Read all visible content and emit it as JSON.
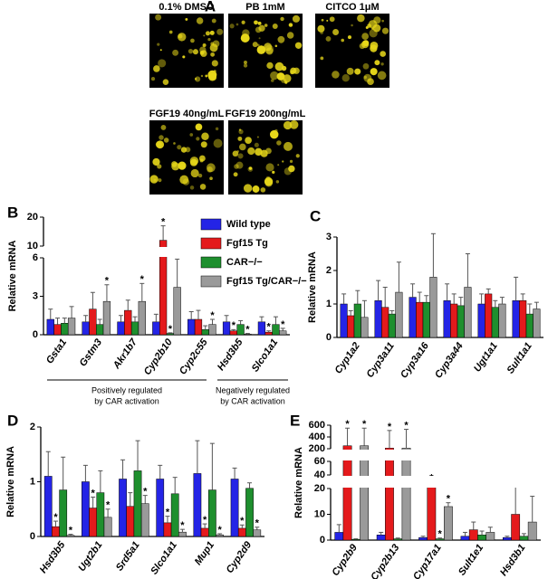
{
  "panel_a": {
    "letter": "A",
    "images": [
      "0.1% DMSO",
      "PB 1mM",
      "CITCO 1μM",
      "FGF19 40ng/mL",
      "FGF19 200ng/mL"
    ]
  },
  "chart_data": [
    {
      "type": "bar",
      "panel": "B",
      "ylabel": "Relative mRNA",
      "categories": [
        "Gsta1",
        "Gstm3",
        "Akr1b7",
        "Cyp2b10",
        "Cyp2c55",
        "Hsd3b5",
        "Slco1a1"
      ],
      "ylim": [
        0,
        20
      ],
      "ysegments": [
        [
          0,
          6
        ],
        [
          10,
          20
        ]
      ],
      "yticks": [
        0,
        3,
        6,
        10,
        20
      ],
      "legend": "upper right",
      "groups": [
        [
          "Positively regulated",
          "by CAR activation"
        ],
        [
          "Negatively regulated",
          "by CAR activation"
        ]
      ],
      "series": [
        {
          "name": "Wild type",
          "color": "#2424e6",
          "values": [
            1.2,
            1.0,
            1.0,
            1.0,
            1.2,
            1.0,
            1.0
          ],
          "errors": [
            0.8,
            0.5,
            0.5,
            0.6,
            0.6,
            0.5,
            0.4
          ],
          "annotations": [
            null,
            null,
            null,
            null,
            null,
            null,
            null
          ]
        },
        {
          "name": "Fgf15 Tg",
          "color": "#e41a1c",
          "values": [
            0.8,
            2.0,
            1.9,
            12,
            1.2,
            0.3,
            0.2
          ],
          "errors": [
            0.5,
            1.3,
            0.8,
            5,
            0.7,
            0.1,
            0.1
          ],
          "annotations": [
            null,
            null,
            null,
            "*",
            null,
            "*",
            "*"
          ]
        },
        {
          "name": "CAR−/−",
          "color": "#1e8f2e",
          "values": [
            0.9,
            0.8,
            1.0,
            0.1,
            0.4,
            0.8,
            0.8
          ],
          "errors": [
            0.4,
            0.4,
            0.4,
            0.05,
            0.3,
            0.3,
            0.6
          ],
          "annotations": [
            null,
            null,
            null,
            "*",
            null,
            null,
            null
          ]
        },
        {
          "name": "Fgf15 Tg/CAR−/−",
          "color": "#9a9a9a",
          "values": [
            1.3,
            2.6,
            2.6,
            3.7,
            0.8,
            0.05,
            0.3
          ],
          "errors": [
            0.9,
            1.3,
            1.4,
            2.2,
            0.4,
            0.05,
            0.2
          ],
          "annotations": [
            null,
            "*",
            "*",
            "*",
            "*",
            "*",
            "*"
          ]
        }
      ]
    },
    {
      "type": "bar",
      "panel": "C",
      "ylabel": "Relative mRNA",
      "categories": [
        "Cyp1a2",
        "Cyp3a11",
        "Cyp3a16",
        "Cyp3a44",
        "Ugt1a1",
        "Sult1a1"
      ],
      "ylim": [
        0,
        3
      ],
      "ysegments": [
        [
          0,
          3
        ]
      ],
      "yticks": [
        0,
        1,
        2,
        3
      ],
      "series": [
        {
          "color": "#2424e6",
          "values": [
            1.0,
            1.1,
            1.2,
            1.1,
            1.0,
            1.1
          ],
          "errors": [
            0.3,
            0.6,
            0.4,
            0.5,
            0.3,
            0.7
          ]
        },
        {
          "color": "#e41a1c",
          "values": [
            0.65,
            0.9,
            1.05,
            1.0,
            1.3,
            1.1
          ],
          "errors": [
            0.15,
            0.6,
            0.3,
            0.3,
            0.15,
            0.2
          ]
        },
        {
          "color": "#1e8f2e",
          "values": [
            1.0,
            0.7,
            1.05,
            0.95,
            0.9,
            0.7
          ],
          "errors": [
            0.4,
            0.1,
            0.2,
            0.25,
            0.2,
            0.3
          ]
        },
        {
          "color": "#9a9a9a",
          "values": [
            0.6,
            1.35,
            1.8,
            1.5,
            1.0,
            0.85
          ],
          "errors": [
            0.5,
            0.9,
            1.3,
            1.0,
            0.2,
            0.2
          ]
        }
      ]
    },
    {
      "type": "bar",
      "panel": "D",
      "ylabel": "Relative mRNA",
      "categories": [
        "Hsd3b5",
        "Ugt2b1",
        "Srd5a1",
        "Slco1a1",
        "Mup1",
        "Cyp2d9"
      ],
      "ylim": [
        0,
        2
      ],
      "ysegments": [
        [
          0,
          2
        ]
      ],
      "yticks": [
        0,
        1,
        2
      ],
      "series": [
        {
          "color": "#2424e6",
          "values": [
            1.1,
            1.0,
            1.05,
            1.05,
            1.15,
            1.05
          ],
          "errors": [
            0.45,
            0.3,
            0.35,
            0.25,
            0.6,
            0.2
          ],
          "annotations": [
            null,
            null,
            null,
            null,
            null,
            null
          ]
        },
        {
          "color": "#e41a1c",
          "values": [
            0.18,
            0.52,
            0.55,
            0.25,
            0.15,
            0.15
          ],
          "errors": [
            0.1,
            0.2,
            0.25,
            0.12,
            0.08,
            0.06
          ],
          "annotations": [
            "*",
            "*",
            null,
            "*",
            "*",
            "*"
          ]
        },
        {
          "color": "#1e8f2e",
          "values": [
            0.85,
            0.8,
            1.2,
            0.78,
            0.85,
            0.88
          ],
          "errors": [
            0.6,
            0.4,
            0.55,
            0.3,
            0.85,
            0.1
          ],
          "annotations": [
            null,
            null,
            null,
            null,
            null,
            null
          ]
        },
        {
          "color": "#9a9a9a",
          "values": [
            0.02,
            0.35,
            0.6,
            0.08,
            0.03,
            0.12
          ],
          "errors": [
            0.02,
            0.15,
            0.15,
            0.05,
            0.02,
            0.05
          ],
          "annotations": [
            "*",
            "*",
            "*",
            "*",
            "*",
            "*"
          ]
        }
      ]
    },
    {
      "type": "bar",
      "panel": "E",
      "ylabel": "Relative mRNA",
      "categories": [
        "Cyp2b9",
        "Cyp2b13",
        "Cyp17a1",
        "Sult1e1",
        "Hsd3b1"
      ],
      "ylim": [
        0,
        600
      ],
      "ysegments": [
        [
          0,
          20
        ],
        [
          40,
          60
        ],
        [
          200,
          600
        ]
      ],
      "yticks": [
        0,
        10,
        20,
        40,
        60,
        200,
        400,
        600
      ],
      "series": [
        {
          "color": "#2424e6",
          "values": [
            3,
            2,
            1,
            1.5,
            1
          ],
          "errors": [
            3,
            1,
            0.5,
            1.5,
            0.5
          ],
          "annotations": [
            null,
            null,
            null,
            null,
            null
          ]
        },
        {
          "color": "#e41a1c",
          "values": [
            250,
            210,
            27,
            4,
            10
          ],
          "errors": [
            300,
            300,
            3,
            3,
            18
          ],
          "annotations": [
            "*",
            "*",
            "*",
            null,
            null
          ]
        },
        {
          "color": "#1e8f2e",
          "values": [
            0.3,
            0.5,
            0.5,
            2,
            1.5
          ],
          "errors": [
            0.2,
            0.3,
            0.3,
            1.5,
            1
          ],
          "annotations": [
            null,
            null,
            "*",
            null,
            null
          ]
        },
        {
          "color": "#9a9a9a",
          "values": [
            250,
            210,
            13,
            3,
            7
          ],
          "errors": [
            300,
            320,
            1.5,
            2,
            10
          ],
          "annotations": [
            "*",
            "*",
            "*",
            null,
            null
          ]
        }
      ]
    }
  ]
}
